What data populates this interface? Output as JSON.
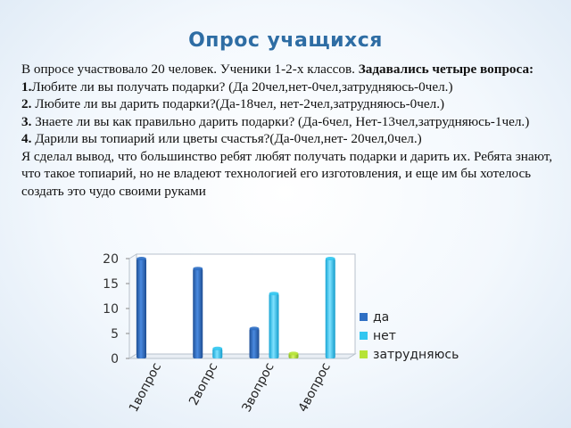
{
  "slide": {
    "title": "Опрос учащихся",
    "intro": "В опросе  участвовало 20 человек. Ученики 1-2-х классов.",
    "intro_bold": "Задавались четыре вопроса:",
    "questions": [
      {
        "num": "1.",
        "text": "Любите ли вы получать подарки? (Да 20чел,нет-0чел,затрудняюсь-0чел.)"
      },
      {
        "num": "2.",
        "text": "Любите ли вы дарить подарки?(Да-18чел, нет-2чел,затрудняюсь-0чел.)"
      },
      {
        "num": "3.",
        "text": "Знаете ли вы как правильно дарить подарки?  (Да-6чел, Нет-13чел,затрудняюсь-1чел.)"
      },
      {
        "num": "4.",
        "text": "Дарили вы топиарий или цветы счастья?(Да-0чел,нет- 20чел,0чел.)"
      }
    ],
    "conclusion": "Я сделал вывод, что большинство ребят любят получать подарки и дарить их. Ребята знают, что такое топиарий, но не владеют технологией его изготовления, и еще им бы хотелось создать это чудо своими руками"
  },
  "chart_data": {
    "type": "bar",
    "categories": [
      "1вопрос",
      "2вопрс",
      "3вопрос",
      "4вопрос"
    ],
    "series": [
      {
        "name": "да",
        "values": [
          20,
          18,
          6,
          0
        ],
        "color": "#2f6fc4"
      },
      {
        "name": "нет",
        "values": [
          0,
          2,
          13,
          20
        ],
        "color": "#33c6f0"
      },
      {
        "name": "затрудняюсь",
        "values": [
          0,
          0,
          1,
          0
        ],
        "color": "#b6e336"
      }
    ],
    "yticks": [
      0,
      5,
      10,
      15,
      20
    ],
    "ylim": [
      0,
      20
    ],
    "legend_position": "right"
  }
}
